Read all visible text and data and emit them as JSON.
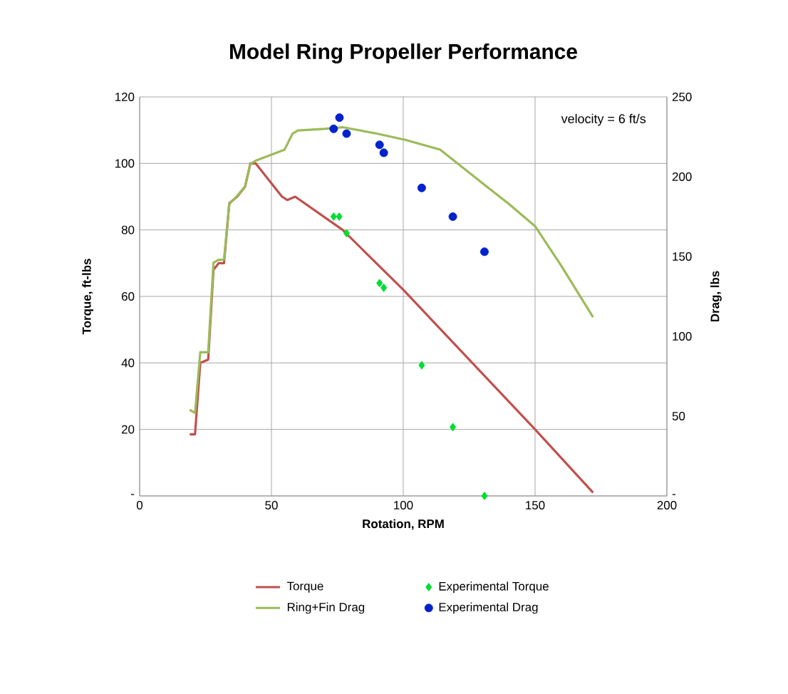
{
  "chart_data": {
    "type": "line",
    "title": "Model Ring Propeller Performance",
    "xlabel": "Rotation, RPM",
    "ylabel": "Torque, ft-lbs",
    "y2label": "Drag, lbs",
    "annotations": [
      "velocity = 6 ft/s"
    ],
    "xlim": [
      0,
      200
    ],
    "xticks": [
      0,
      50,
      100,
      150,
      200
    ],
    "ylim": [
      0,
      120
    ],
    "yticks": [
      {
        "value": 0,
        "label": "-"
      },
      20,
      40,
      60,
      80,
      100,
      120
    ],
    "y2lim": [
      0,
      250
    ],
    "y2ticks": [
      {
        "value": 0,
        "label": "-"
      },
      50,
      100,
      150,
      200,
      250
    ],
    "grid": true,
    "legend": "bottom",
    "series": [
      {
        "name": "Torque",
        "color": "#c0504d",
        "marker": "none",
        "x": [
          19,
          21,
          23,
          26,
          28,
          30,
          32,
          34,
          37,
          40,
          42,
          44,
          54,
          56,
          59,
          77,
          100,
          125,
          150,
          172
        ],
        "values": [
          18.5,
          18.5,
          40,
          41,
          68,
          70,
          70,
          88,
          90,
          93,
          100,
          100,
          90,
          89,
          90,
          80,
          62,
          41,
          20,
          1
        ]
      },
      {
        "name": "Ring+Fin Drag",
        "axis": "y2",
        "color": "#9bbb59",
        "marker": "none",
        "x": [
          19,
          21,
          23,
          26,
          28,
          30,
          32,
          34,
          37,
          40,
          42,
          44,
          55,
          58,
          60,
          70,
          77,
          90,
          101,
          114,
          130,
          140,
          150,
          160,
          172
        ],
        "values": [
          54,
          52,
          90,
          90,
          146,
          148,
          148,
          183,
          188,
          194,
          208,
          210,
          217,
          227,
          229,
          230,
          231,
          227,
          223,
          217,
          196,
          183,
          169,
          144,
          112
        ]
      },
      {
        "name": "Experimental Torque",
        "type": "scatter",
        "color": "#00dd33",
        "marker": "diamond",
        "x": [
          73.6,
          75.7,
          78.5,
          91,
          92.6,
          107,
          118.8,
          130.8
        ],
        "values": [
          84,
          84,
          79,
          64,
          62.6,
          39.3,
          20.7,
          0
        ]
      },
      {
        "name": "Experimental Drag",
        "type": "scatter",
        "axis": "y2",
        "color": "#0022cc",
        "marker": "circle",
        "x": [
          73.6,
          75.8,
          78.5,
          91,
          92.6,
          107,
          118.8,
          130.8
        ],
        "values": [
          230,
          237,
          227,
          220,
          215,
          193,
          175,
          153
        ]
      }
    ]
  }
}
